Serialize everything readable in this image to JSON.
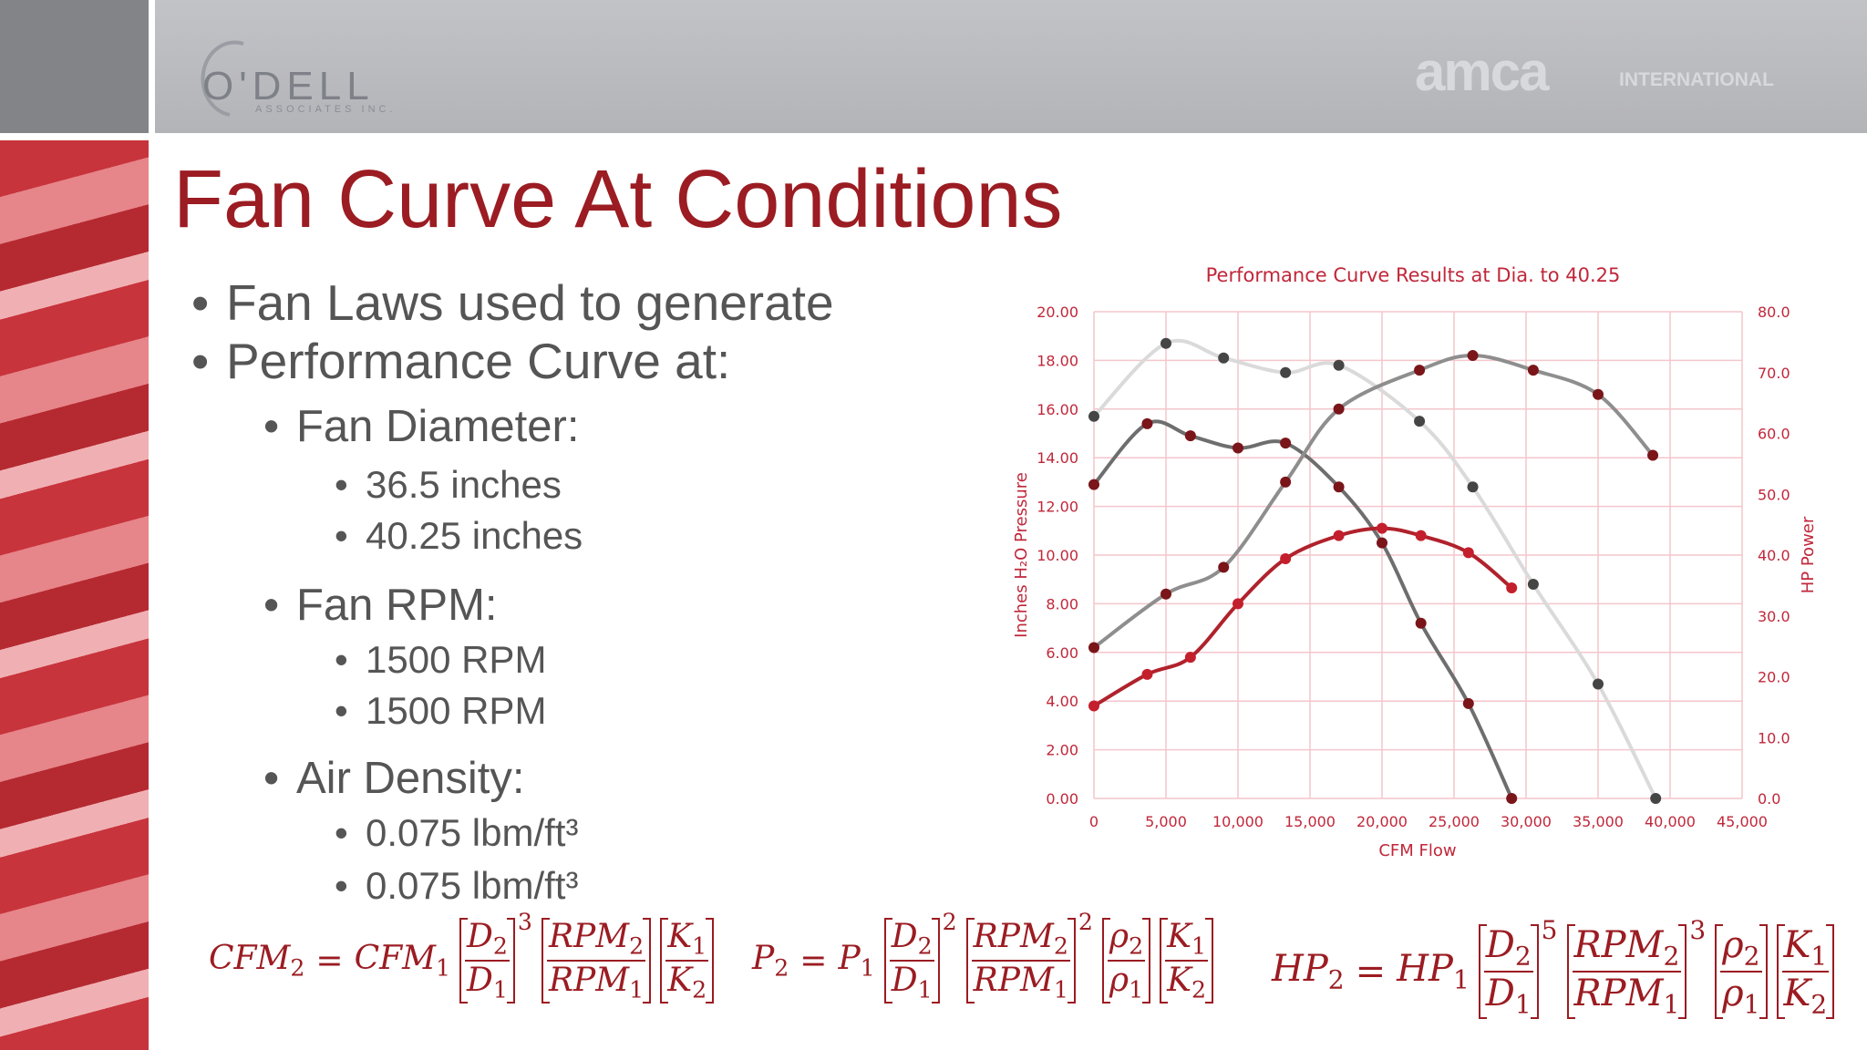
{
  "header": {
    "logo_left": "O'DELL",
    "logo_left_sub": "ASSOCIATES INC.",
    "logo_right": "amca",
    "logo_right_sub": "INTERNATIONAL"
  },
  "slide": {
    "title": "Fan Curve At Conditions",
    "bullets": [
      {
        "level": 1,
        "text": "Fan Laws used to generate"
      },
      {
        "level": 1,
        "text": "Performance Curve at:"
      },
      {
        "level": 2,
        "text": "Fan Diameter:"
      },
      {
        "level": 3,
        "text": "36.5 inches"
      },
      {
        "level": 3,
        "text": "40.25 inches"
      },
      {
        "level": 2,
        "text": "Fan RPM:"
      },
      {
        "level": 3,
        "text": "1500 RPM"
      },
      {
        "level": 3,
        "text": "1500 RPM"
      },
      {
        "level": 2,
        "text": "Air Density:"
      },
      {
        "level": 3,
        "text": "0.075 lbm/ft³"
      },
      {
        "level": 3,
        "text": "0.075 lbm/ft³"
      }
    ],
    "formulas": [
      {
        "lhs": "CFM",
        "lhs_sub": "2",
        "eq": "=",
        "rhs": "CFM",
        "rhs_sub": "1",
        "factors": [
          {
            "num": "D",
            "num_sub": "2",
            "den": "D",
            "den_sub": "1",
            "exp": "3"
          },
          {
            "num": "RPM",
            "num_sub": "2",
            "den": "RPM",
            "den_sub": "1"
          },
          {
            "num": "K",
            "num_sub": "1",
            "den": "K",
            "den_sub": "2"
          }
        ]
      },
      {
        "lhs": "P",
        "lhs_sub": "2",
        "eq": "=",
        "rhs": "P",
        "rhs_sub": "1",
        "factors": [
          {
            "num": "D",
            "num_sub": "2",
            "den": "D",
            "den_sub": "1",
            "exp": "2"
          },
          {
            "num": "RPM",
            "num_sub": "2",
            "den": "RPM",
            "den_sub": "1",
            "exp": "2"
          },
          {
            "num": "ρ",
            "num_sub": "2",
            "den": "ρ",
            "den_sub": "1"
          },
          {
            "num": "K",
            "num_sub": "1",
            "den": "K",
            "den_sub": "2"
          }
        ]
      },
      {
        "lhs": "HP",
        "lhs_sub": "2",
        "eq": "=",
        "rhs": "HP",
        "rhs_sub": "1",
        "factors": [
          {
            "num": "D",
            "num_sub": "2",
            "den": "D",
            "den_sub": "1",
            "exp": "5"
          },
          {
            "num": "RPM",
            "num_sub": "2",
            "den": "RPM",
            "den_sub": "1",
            "exp": "3"
          },
          {
            "num": "ρ",
            "num_sub": "2",
            "den": "ρ",
            "den_sub": "1"
          },
          {
            "num": "K",
            "num_sub": "1",
            "den": "K",
            "den_sub": "2"
          }
        ]
      }
    ]
  },
  "chart_data": {
    "type": "scatter",
    "title": "Performance Curve Results at Dia. to 40.25",
    "x_label": "CFM Flow",
    "y_label": "Inches H₂O Pressure",
    "y2_label": "HP Power",
    "xlim": [
      0,
      45000
    ],
    "xticks": [
      0,
      {
        "value": 5000,
        "label": "5,000"
      },
      {
        "value": 10000,
        "label": "10,000"
      },
      {
        "value": 15000,
        "label": "15,000"
      },
      {
        "value": 20000,
        "label": "20,000"
      },
      {
        "value": 25000,
        "label": "25,000"
      },
      {
        "value": 30000,
        "label": "30,000"
      },
      {
        "value": 35000,
        "label": "35,000"
      },
      {
        "value": 40000,
        "label": "40,000"
      },
      {
        "value": 45000,
        "label": "45,000"
      }
    ],
    "ylim": [
      0,
      20
    ],
    "yticks": [
      {
        "value": 0,
        "label": "0.00"
      },
      {
        "value": 2,
        "label": "2.00"
      },
      {
        "value": 4,
        "label": "4.00"
      },
      {
        "value": 6,
        "label": "6.00"
      },
      {
        "value": 8,
        "label": "8.00"
      },
      {
        "value": 10,
        "label": "10.00"
      },
      {
        "value": 12,
        "label": "12.00"
      },
      {
        "value": 14,
        "label": "14.00"
      },
      {
        "value": 16,
        "label": "16.00"
      },
      {
        "value": 18,
        "label": "18.00"
      },
      {
        "value": 20,
        "label": "20.00"
      }
    ],
    "y2lim": [
      0,
      80
    ],
    "y2ticks": [
      {
        "value": 0,
        "label": "0.0"
      },
      {
        "value": 10,
        "label": "10.0"
      },
      {
        "value": 20,
        "label": "20.0"
      },
      {
        "value": 30,
        "label": "30.0"
      },
      {
        "value": 40,
        "label": "40.0"
      },
      {
        "value": 50,
        "label": "50.0"
      },
      {
        "value": 60,
        "label": "60.0"
      },
      {
        "value": 70,
        "label": "70.0"
      },
      {
        "value": 80,
        "label": "80.0"
      }
    ],
    "grid": true,
    "grid_color": "#f4c6cc",
    "text_color": "#c0273a",
    "smooth": true,
    "series": [
      {
        "color": "#dadada",
        "marker_color": "#454545",
        "axis": "y",
        "x": [
          0,
          5000,
          9000,
          13300,
          17000,
          22600,
          26300,
          30500,
          35000,
          39000
        ],
        "values": [
          15.7,
          18.7,
          18.1,
          17.5,
          17.8,
          15.5,
          12.8,
          8.8,
          4.7,
          0
        ]
      },
      {
        "color": "#6e6e6e",
        "marker_color": "#7a1519",
        "axis": "y",
        "x": [
          0,
          3700,
          6700,
          10000,
          13300,
          17000,
          20000,
          22700,
          26000,
          29000
        ],
        "values": [
          12.9,
          15.4,
          14.9,
          14.4,
          14.6,
          12.8,
          10.5,
          7.2,
          3.9,
          0
        ]
      },
      {
        "color": "#8e8e8e",
        "marker_color": "#7a1519",
        "axis": "y2",
        "x": [
          0,
          5000,
          9000,
          13300,
          17000,
          22600,
          26300,
          30500,
          35000,
          38800
        ],
        "values": [
          24.8,
          33.6,
          38,
          52,
          64,
          70.4,
          72.8,
          70.4,
          66.4,
          56.4
        ]
      },
      {
        "color": "#b0222c",
        "marker_color": "#c41f2c",
        "axis": "y2",
        "x": [
          0,
          3700,
          6700,
          10000,
          13300,
          17000,
          20000,
          22700,
          26000,
          29000
        ],
        "values": [
          15.2,
          20.4,
          23.2,
          32,
          39.4,
          43.2,
          44.4,
          43.2,
          40.4,
          34.6
        ]
      }
    ]
  }
}
